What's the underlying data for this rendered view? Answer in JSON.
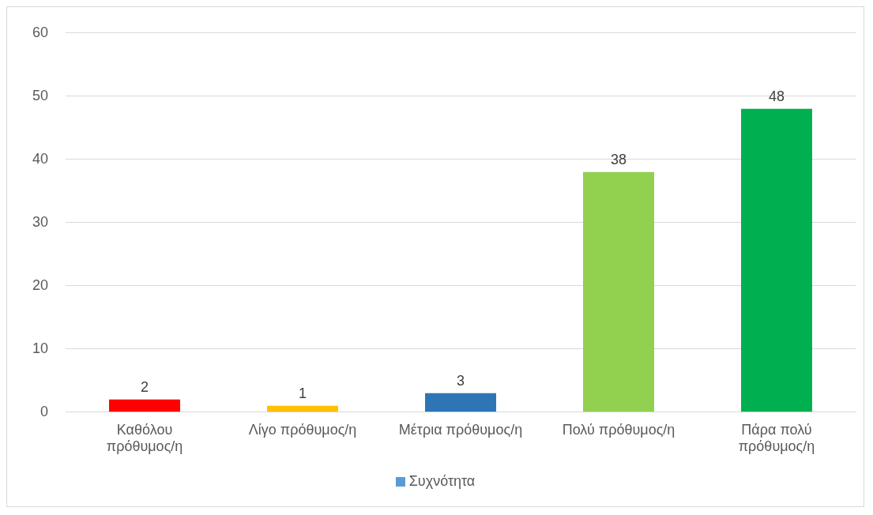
{
  "chart_data": {
    "type": "bar",
    "categories": [
      "Καθόλου πρόθυμος/η",
      "Λίγο πρόθυμος/η",
      "Μέτρια πρόθυμος/η",
      "Πολύ πρόθυμος/η",
      "Πάρα πολύ πρόθυμος/η"
    ],
    "series": [
      {
        "name": "Συχνότητα",
        "color": "#5b9bd5",
        "colors": [
          "#ff0000",
          "#ffc000",
          "#2e75b6",
          "#92d050",
          "#00b050"
        ],
        "values": [
          2,
          1,
          3,
          38,
          48
        ]
      }
    ],
    "ylim": [
      0,
      60
    ],
    "yticks": [
      0,
      10,
      20,
      30,
      40,
      50,
      60
    ],
    "grid": "y",
    "legend": "bottom",
    "data_labels": true
  }
}
